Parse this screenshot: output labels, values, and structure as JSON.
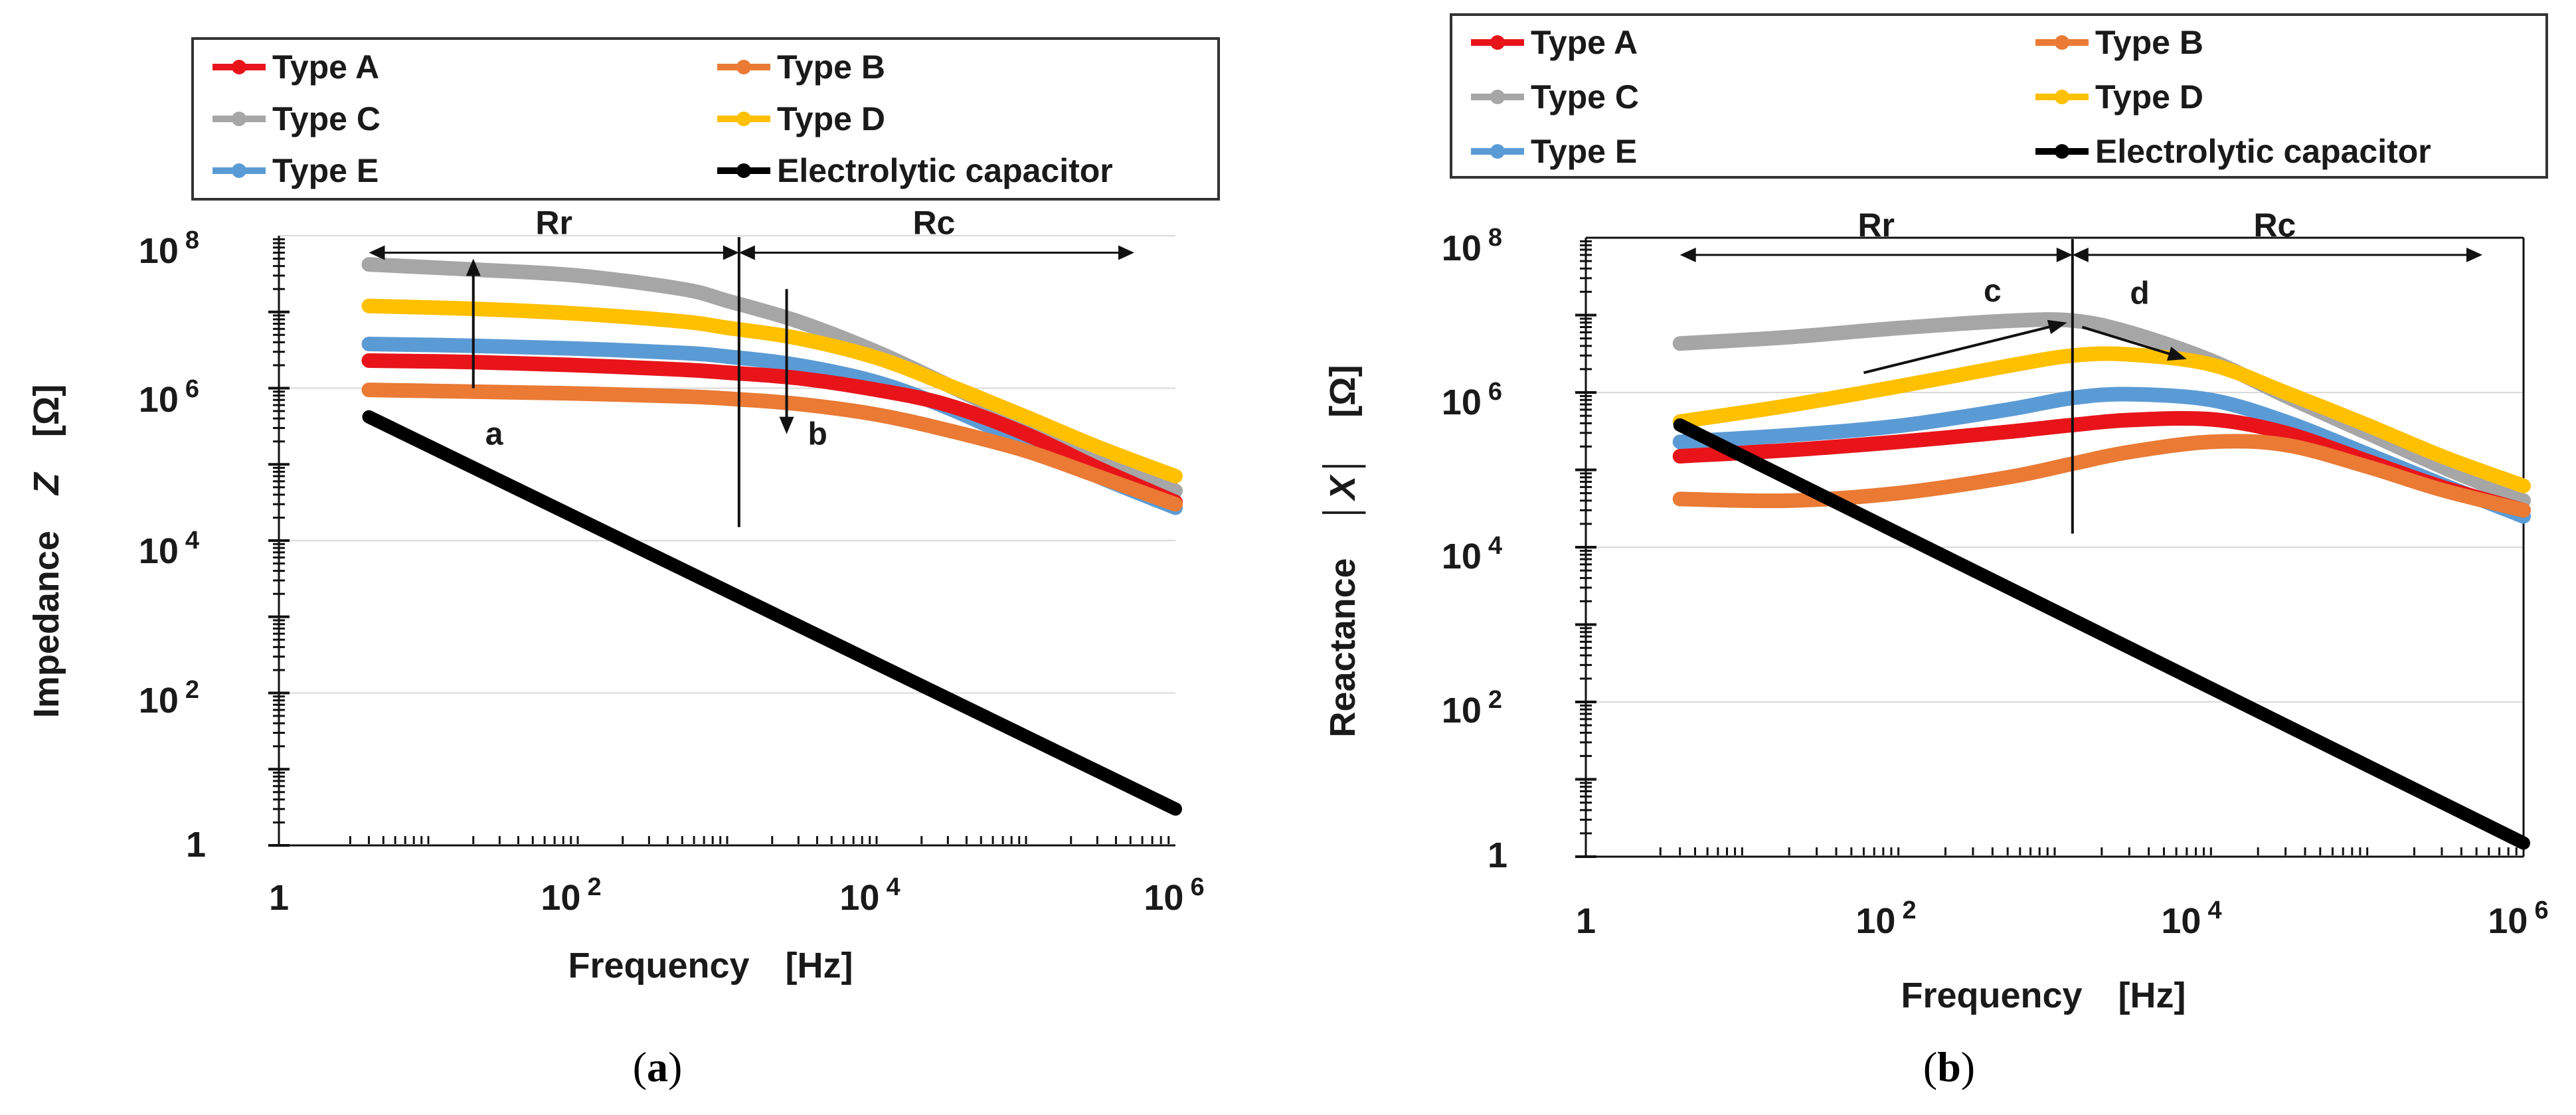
{
  "figure": {
    "caption_a_open": "(",
    "caption_a_letter": "a",
    "caption_a_close": ")",
    "caption_b_open": "(",
    "caption_b_letter": "b",
    "caption_b_close": ")"
  },
  "colors": {
    "type_a": "#e8141a",
    "type_b": "#ea7a34",
    "type_c": "#a6a6a6",
    "type_d": "#ffc000",
    "type_e": "#5b9bd5",
    "electrolytic": "#000000"
  },
  "legend": [
    {
      "key": "type_a",
      "label": "Type A"
    },
    {
      "key": "type_b",
      "label": "Type B"
    },
    {
      "key": "type_c",
      "label": "Type C"
    },
    {
      "key": "type_d",
      "label": "Type D"
    },
    {
      "key": "type_e",
      "label": "Type E"
    },
    {
      "key": "electrolytic",
      "label": "Electrolytic capacitor"
    }
  ],
  "chart_data": [
    {
      "id": "a",
      "type": "line",
      "xscale": "log",
      "yscale": "log",
      "xlim": [
        1,
        1000000
      ],
      "ylim": [
        1,
        100000000
      ],
      "xticks": [
        {
          "label": "1",
          "base": "1",
          "exp": "",
          "value": 1
        },
        {
          "label": "10^2",
          "base": "10",
          "exp": "2",
          "value": 100
        },
        {
          "label": "10^4",
          "base": "10",
          "exp": "4",
          "value": 10000
        },
        {
          "label": "10^6",
          "base": "10",
          "exp": "6",
          "value": 1000000
        }
      ],
      "yticks": [
        {
          "label": "1",
          "base": "1",
          "exp": "",
          "value": 1
        },
        {
          "label": "10^2",
          "base": "10",
          "exp": "2",
          "value": 100
        },
        {
          "label": "10^4",
          "base": "10",
          "exp": "4",
          "value": 10000
        },
        {
          "label": "10^6",
          "base": "10",
          "exp": "6",
          "value": 1000000
        },
        {
          "label": "10^8",
          "base": "10",
          "exp": "8",
          "value": 100000000
        }
      ],
      "xlabel": "Frequency　[Hz]",
      "ylabel_prefix": "Impedance　",
      "ylabel_var": "Z",
      "ylabel_unit": "　[Ω]",
      "regions": {
        "boundary": 1200,
        "left_label": "Rr",
        "right_label": "Rc",
        "y_value": 60000000
      },
      "annotations": [
        {
          "label": "a",
          "x": 20,
          "from": 1000000,
          "to": 50000000,
          "direction": "up",
          "label_y": 260000
        },
        {
          "label": "b",
          "x": 2500,
          "from": 20000000,
          "to": 250000,
          "direction": "down",
          "label_y": 260000
        }
      ],
      "series": [
        {
          "key": "type_c",
          "name": "Type C",
          "x": [
            4,
            20,
            100,
            500,
            1000,
            3000,
            10000,
            30000,
            100000,
            300000,
            1000000
          ],
          "y": [
            42000000,
            36000000,
            30000000,
            20000000,
            14000000,
            7500000,
            3000000,
            1100000,
            350000,
            120000,
            45000
          ]
        },
        {
          "key": "type_d",
          "name": "Type D",
          "x": [
            4,
            20,
            100,
            500,
            1000,
            3000,
            10000,
            30000,
            100000,
            300000,
            1000000
          ],
          "y": [
            12000000,
            11000000,
            9500000,
            7500000,
            6200000,
            4500000,
            2500000,
            1100000,
            420000,
            170000,
            70000
          ]
        },
        {
          "key": "type_e",
          "name": "Type E",
          "x": [
            4,
            20,
            100,
            500,
            1000,
            3000,
            10000,
            30000,
            100000,
            300000,
            1000000
          ],
          "y": [
            3800000,
            3600000,
            3300000,
            2900000,
            2600000,
            2000000,
            1200000,
            550000,
            190000,
            70000,
            27000
          ]
        },
        {
          "key": "type_a",
          "name": "Type A",
          "x": [
            4,
            20,
            100,
            500,
            1000,
            3000,
            10000,
            30000,
            100000,
            300000,
            1000000
          ],
          "y": [
            2300000,
            2200000,
            2000000,
            1750000,
            1600000,
            1350000,
            950000,
            600000,
            250000,
            90000,
            32000
          ]
        },
        {
          "key": "type_b",
          "name": "Type B",
          "x": [
            4,
            20,
            100,
            500,
            1000,
            3000,
            10000,
            30000,
            100000,
            300000,
            1000000
          ],
          "y": [
            950000,
            900000,
            850000,
            780000,
            730000,
            620000,
            450000,
            280000,
            150000,
            70000,
            30000
          ]
        },
        {
          "key": "electrolytic",
          "name": "Electrolytic capacitor",
          "x": [
            4,
            1000000
          ],
          "y": [
            420000,
            3
          ]
        }
      ]
    },
    {
      "id": "b",
      "type": "line",
      "xscale": "log",
      "yscale": "log",
      "xlim": [
        1,
        1000000
      ],
      "ylim": [
        1,
        100000000
      ],
      "xticks": [
        {
          "label": "1",
          "base": "1",
          "exp": "",
          "value": 1
        },
        {
          "label": "10^2",
          "base": "10",
          "exp": "2",
          "value": 100
        },
        {
          "label": "10^4",
          "base": "10",
          "exp": "4",
          "value": 10000
        },
        {
          "label": "10^6",
          "base": "10",
          "exp": "6",
          "value": 1000000
        }
      ],
      "yticks": [
        {
          "label": "1",
          "base": "1",
          "exp": "",
          "value": 1
        },
        {
          "label": "10^2",
          "base": "10",
          "exp": "2",
          "value": 100
        },
        {
          "label": "10^4",
          "base": "10",
          "exp": "4",
          "value": 10000
        },
        {
          "label": "10^6",
          "base": "10",
          "exp": "6",
          "value": 1000000
        },
        {
          "label": "10^8",
          "base": "10",
          "exp": "8",
          "value": 100000000
        }
      ],
      "xlabel": "Frequency　[Hz]",
      "ylabel_prefix": "Reactance　",
      "ylabel_var": "│X│",
      "ylabel_unit": "　[Ω]",
      "regions": {
        "boundary": 1300,
        "left_label": "Rr",
        "right_label": "Rc",
        "y_value": 60000000
      },
      "annotations": [
        {
          "label": "c",
          "x0": 60,
          "y0": 1800000,
          "x1": 1200,
          "y1": 8000000,
          "label_x": 400,
          "label_y": 15000000
        },
        {
          "label": "d",
          "x0": 1500,
          "y0": 7000000,
          "x1": 7000,
          "y1": 2700000,
          "label_x": 3500,
          "label_y": 14000000
        }
      ],
      "series": [
        {
          "key": "type_c",
          "name": "Type C",
          "x": [
            4,
            20,
            100,
            500,
            1300,
            3000,
            10000,
            30000,
            100000,
            300000,
            1000000
          ],
          "y": [
            4300000,
            5200000,
            6800000,
            8400000,
            8500000,
            6000000,
            2600000,
            900000,
            300000,
            110000,
            40000
          ]
        },
        {
          "key": "type_d",
          "name": "Type D",
          "x": [
            4,
            20,
            100,
            500,
            1300,
            3000,
            10000,
            30000,
            100000,
            300000,
            1000000
          ],
          "y": [
            420000,
            680000,
            1200000,
            2200000,
            3000000,
            3100000,
            2300000,
            1000000,
            380000,
            150000,
            62000
          ]
        },
        {
          "key": "type_e",
          "name": "Type E",
          "x": [
            4,
            20,
            100,
            500,
            1300,
            3000,
            10000,
            30000,
            100000,
            300000,
            1000000
          ],
          "y": [
            230000,
            280000,
            370000,
            600000,
            850000,
            950000,
            800000,
            420000,
            160000,
            65000,
            25000
          ]
        },
        {
          "key": "type_a",
          "name": "Type A",
          "x": [
            4,
            20,
            100,
            500,
            1300,
            3000,
            10000,
            30000,
            100000,
            300000,
            1000000
          ],
          "y": [
            150000,
            180000,
            230000,
            310000,
            380000,
            440000,
            450000,
            300000,
            130000,
            60000,
            30000
          ]
        },
        {
          "key": "type_b",
          "name": "Type B",
          "x": [
            4,
            20,
            100,
            500,
            1300,
            3000,
            10000,
            30000,
            100000,
            300000,
            1000000
          ],
          "y": [
            42000,
            40000,
            50000,
            80000,
            120000,
            170000,
            230000,
            210000,
            110000,
            55000,
            30000
          ]
        },
        {
          "key": "electrolytic",
          "name": "Electrolytic capacitor",
          "x": [
            4,
            1000000
          ],
          "y": [
            380000,
            1.5
          ]
        }
      ]
    }
  ]
}
